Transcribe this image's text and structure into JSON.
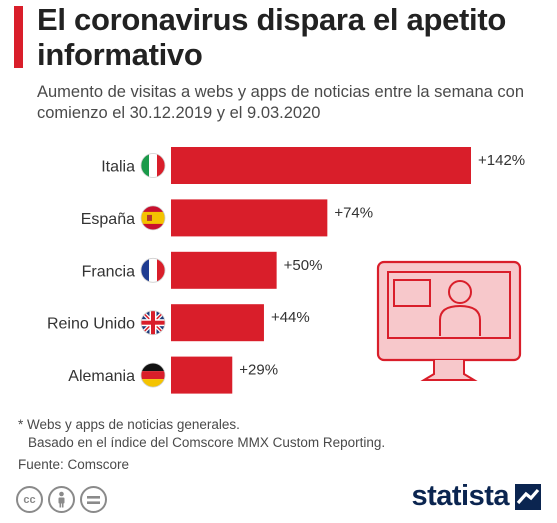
{
  "header": {
    "title": "El coronavirus dispara el apetito informativo",
    "subtitle": "Aumento de visitas a webs y apps de noticias entre la semana con comienzo el 30.12.2019 y el 9.03.2020"
  },
  "chart_data": {
    "type": "bar",
    "orientation": "horizontal",
    "title": "",
    "xlabel": "",
    "ylabel": "",
    "categories": [
      "Italia",
      "España",
      "Francia",
      "Reino Unido",
      "Alemania"
    ],
    "values": [
      142,
      74,
      50,
      44,
      29
    ],
    "value_labels": [
      "+142%",
      "+74%",
      "+50%",
      "+44%",
      "+29%"
    ],
    "flags": [
      "italy-flag-icon",
      "spain-flag-icon",
      "france-flag-icon",
      "uk-flag-icon",
      "germany-flag-icon"
    ],
    "xlim": [
      0,
      142
    ],
    "grid": false,
    "bar_color": "#d91e2a"
  },
  "notes": {
    "line1": "* Webs y apps de noticias generales.",
    "line2": "Basado en el índice del Comscore MMX Custom Reporting.",
    "source": "Fuente: Comscore"
  },
  "footer": {
    "brand": "statista",
    "license_icons": [
      "cc-icon",
      "person-icon",
      "equals-icon"
    ],
    "cc_text": "cc"
  },
  "colors": {
    "accent": "#d91e2a",
    "illustration_fill": "#f7c8cb",
    "illustration_stroke": "#d91e2a",
    "brand": "#0b2550"
  }
}
